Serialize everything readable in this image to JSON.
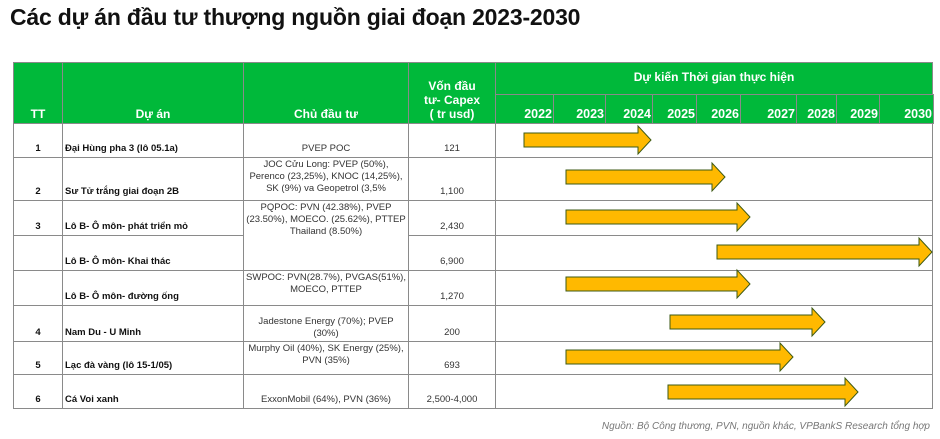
{
  "title": "Các dự án đầu tư thượng nguồn giai đoạn 2023-2030",
  "headers": {
    "tt": "TT",
    "project": "Dự án",
    "owner": "Chủ đầu tư",
    "capex": "Vốn đầu tư- Capex ( tr usd)",
    "timeline": "Dự kiến Thời gian thực hiện",
    "years": [
      "2022",
      "2023",
      "2024",
      "2025",
      "2026",
      "2027",
      "2028",
      "2029",
      "2030"
    ]
  },
  "rows": [
    {
      "tt": "1",
      "project": "Đại Hùng pha 3 (lô 05.1a)",
      "owner": "PVEP POC",
      "capex": "121"
    },
    {
      "tt": "2",
      "project": "Sư Tử trắng giai đoạn 2B",
      "owner": "JOC Cửu Long: PVEP (50%), Perenco (23,25%), KNOC (14,25%), SK (9%) va Geopetrol (3,5%",
      "capex": "1,100"
    },
    {
      "tt": "3",
      "project": "Lô B- Ô môn- phát triển mỏ",
      "owner": "PQPOC: PVN (42.38%), PVEP (23.50%), MOECO. (25.62%), PTTEP Thailand (8.50%)",
      "capex": "2,430"
    },
    {
      "tt": "",
      "project": "Lô B- Ô môn- Khai thác",
      "owner": "",
      "capex": "6,900"
    },
    {
      "tt": "",
      "project": "Lô B- Ô môn- đường ống",
      "owner": "SWPOC: PVN(28.7%), PVGAS(51%), MOECO, PTTEP",
      "capex": "1,270"
    },
    {
      "tt": "4",
      "project": "Nam Du - U Minh",
      "owner": "Jadestone Energy (70%); PVEP (30%)",
      "capex": "200"
    },
    {
      "tt": "5",
      "project": "Lạc đà vàng (lô 15-1/05)",
      "owner": "Murphy Oil (40%), SK Energy (25%), PVN (35%)",
      "capex": "693"
    },
    {
      "tt": "6",
      "project": "Cá Voi xanh",
      "owner": "ExxonMobil (64%), PVN (36%)",
      "capex": "2,500-4,000"
    }
  ],
  "colors": {
    "header": "#00b93a",
    "arrow_fill": "#ffb900",
    "arrow_stroke": "#3d5a14"
  },
  "source": "Nguồn: Bộ Công thương, PVN, nguồn khác, VPBankS Research tổng hợp"
}
